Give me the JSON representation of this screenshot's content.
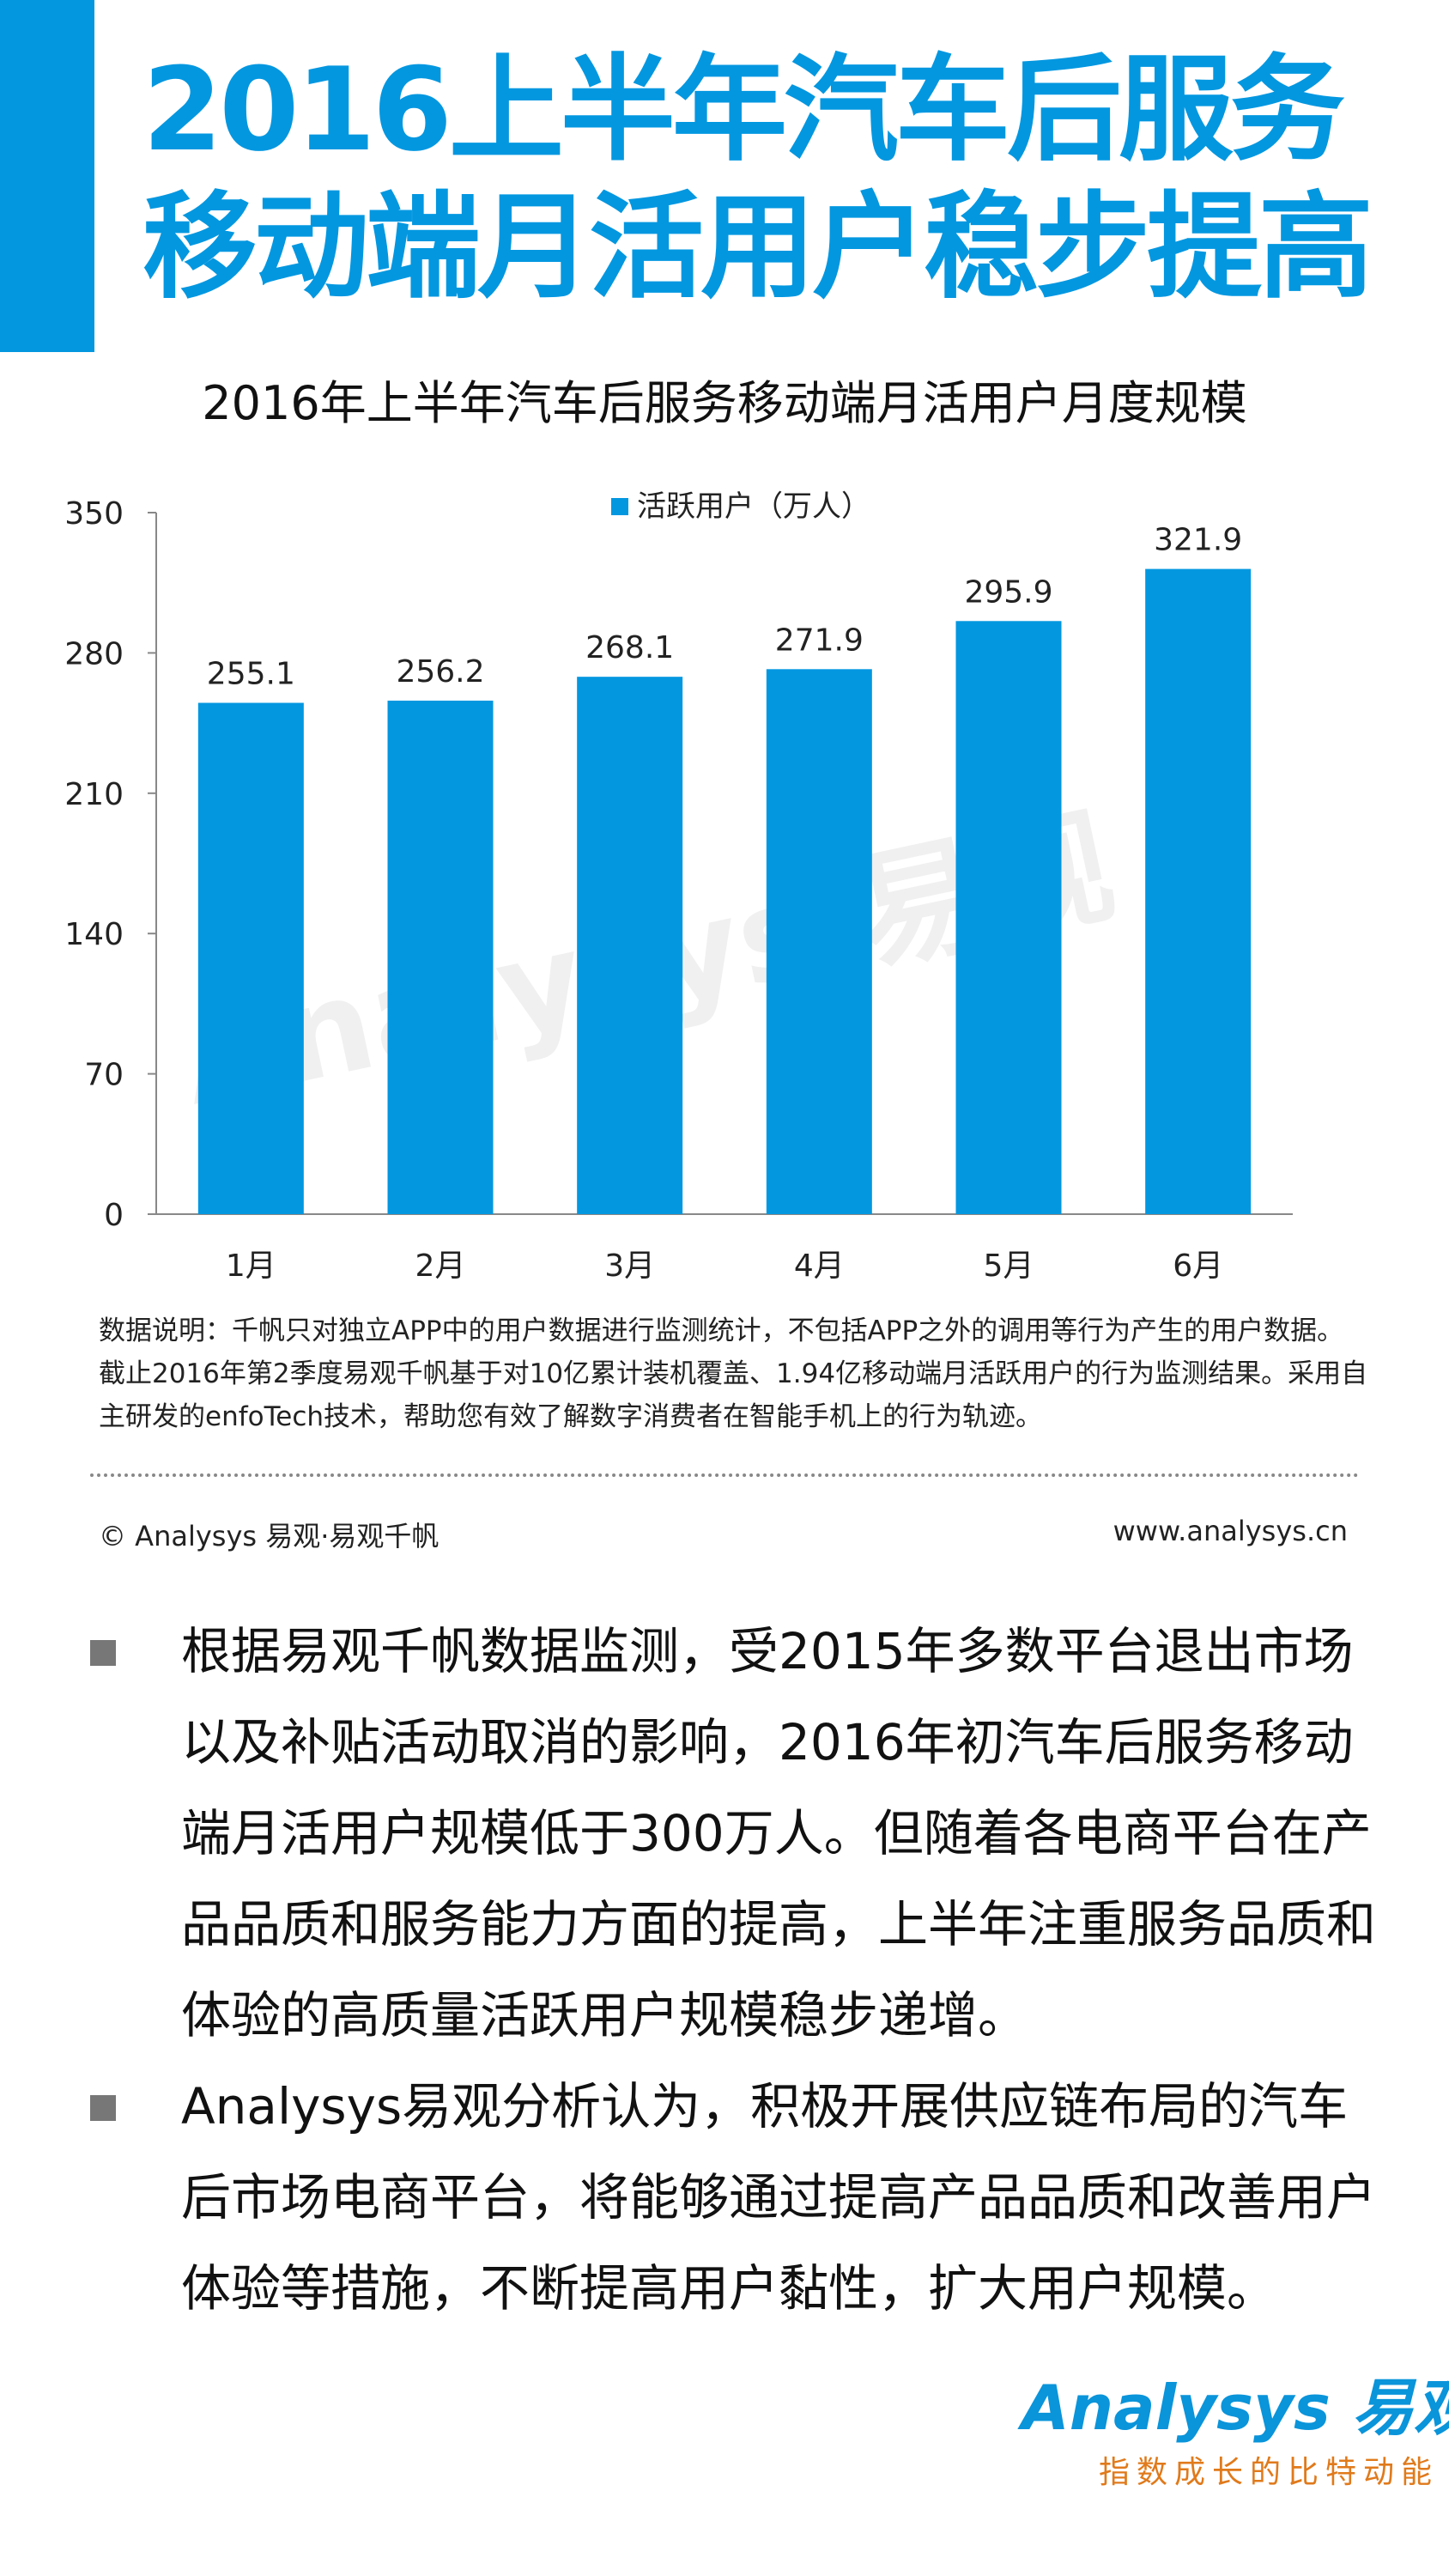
{
  "header": {
    "title_line1": "2016上半年汽车后服务",
    "title_line2": "移动端月活用户稳步提高",
    "accent": "#0397e0"
  },
  "chart_data": {
    "type": "bar",
    "title": "2016年上半年汽车后服务移动端月活用户月度规模",
    "categories": [
      "1月",
      "2月",
      "3月",
      "4月",
      "5月",
      "6月"
    ],
    "series": [
      {
        "name": "活跃用户（万人）",
        "values": [
          255.1,
          256.2,
          268.1,
          271.9,
          295.9,
          321.9
        ],
        "color": "#0397e0"
      }
    ],
    "data_labels": [
      "255.1",
      "256.2",
      "268.1",
      "271.9",
      "295.9",
      "321.9"
    ],
    "ylim": [
      0,
      350
    ],
    "yticks": [
      "0",
      "70",
      "140",
      "210",
      "280",
      "350"
    ],
    "grid": false,
    "legend": "top-center"
  },
  "watermark": "Analysys 易观",
  "note": "数据说明：千帆只对独立APP中的用户数据进行监测统计，不包括APP之外的调用等行为产生的用户数据。截止2016年第2季度易观千帆基于对10亿累计装机覆盖、1.94亿移动端月活跃用户的行为监测结果。采用自主研发的enfoTech技术，帮助您有效了解数字消费者在智能手机上的行为轨迹。",
  "footer": {
    "copyright": "© Analysys 易观·易观千帆",
    "url": "www.analysys.cn"
  },
  "bullets": [
    "根据易观千帆数据监测，受2015年多数平台退出市场以及补贴活动取消的影响，2016年初汽车后服务移动端月活用户规模低于300万人。但随着各电商平台在产品品质和服务能力方面的提高，上半年注重服务品质和体验的高质量活跃用户规模稳步递增。",
    "Analysys易观分析认为，积极开展供应链布局的汽车后市场电商平台，将能够通过提高产品品质和改善用户体验等措施，不断提高用户黏性，扩大用户规模。"
  ],
  "logo": {
    "brand": "Analysys 易观",
    "tagline": "指数成长的比特动能"
  }
}
